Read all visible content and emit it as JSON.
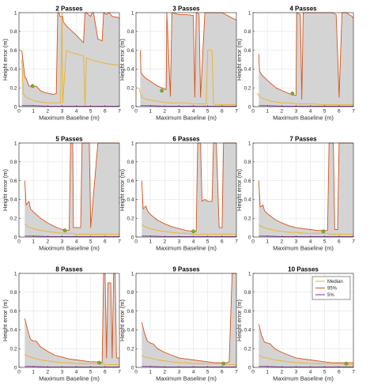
{
  "figure": {
    "xlabel": "Maximum Baseline (m)",
    "ylabel": "Height error (m)",
    "xticks": [
      0,
      1,
      2,
      3,
      4,
      5,
      6,
      7
    ],
    "yticks": [
      0,
      0.2,
      0.4,
      0.6,
      0.8,
      1
    ],
    "xlim": [
      0,
      7
    ],
    "ylim": [
      0,
      1
    ],
    "grid": true
  },
  "colors": {
    "median": "#EDB120",
    "p95": "#D95319",
    "p5": "#7E2F8E",
    "fill": "#d4d4d4",
    "marker": "#77AC30"
  },
  "legend": {
    "panel_index": 8,
    "placement": "top-right",
    "entries": [
      "Median",
      "95%",
      "5%"
    ]
  },
  "chart_data": [
    {
      "type": "line",
      "title": "2 Passes",
      "marker": {
        "x": 0.95,
        "y": 0.22
      },
      "series": [
        {
          "name": "Median",
          "x": [
            0.2,
            0.3,
            0.5,
            0.8,
            1.1,
            1.5,
            2.0,
            2.5,
            2.9,
            3.0,
            3.05,
            3.3,
            3.6,
            4.0,
            4.5,
            4.6,
            4.7,
            5.0,
            5.5,
            6.0,
            6.5,
            7.0
          ],
          "y": [
            0.5,
            0.14,
            0.1,
            0.08,
            0.06,
            0.05,
            0.04,
            0.04,
            0.04,
            1.0,
            0.04,
            0.6,
            0.58,
            0.56,
            0.54,
            0.0,
            0.52,
            0.5,
            0.48,
            0.46,
            0.45,
            0.44
          ]
        },
        {
          "name": "95%",
          "x": [
            0.2,
            0.4,
            0.5,
            0.7,
            1.0,
            1.2,
            1.5,
            1.8,
            2.1,
            2.4,
            2.6,
            2.7,
            2.8,
            2.85,
            3.05,
            3.1,
            3.3,
            3.5,
            4.0,
            4.5,
            4.6,
            4.7,
            5.0,
            5.1,
            5.2,
            5.5,
            5.8,
            5.9,
            6.1,
            6.3,
            6.5,
            6.9,
            7.0
          ],
          "y": [
            0.6,
            0.32,
            0.3,
            0.22,
            0.21,
            0.22,
            0.17,
            0.15,
            0.14,
            0.13,
            0.14,
            1.0,
            1.0,
            0.96,
            0.96,
            0.9,
            0.86,
            0.83,
            0.76,
            0.68,
            1.0,
            1.0,
            0.96,
            1.0,
            1.0,
            0.72,
            0.7,
            1.0,
            0.98,
            1.0,
            0.96,
            0.95,
            0.94
          ]
        },
        {
          "name": "5%",
          "x": [
            0.2,
            1.0,
            2.0,
            3.0,
            4.0,
            5.0,
            6.0,
            7.0
          ],
          "y": [
            0.01,
            0.01,
            0.005,
            0.005,
            0.005,
            0.005,
            0.005,
            0.005
          ]
        }
      ]
    },
    {
      "type": "line",
      "title": "3 Passes",
      "marker": {
        "x": 1.8,
        "y": 0.17
      },
      "series": [
        {
          "name": "Median",
          "x": [
            0.2,
            0.4,
            0.7,
            1.0,
            1.4,
            1.8,
            2.2,
            2.5,
            3.0,
            3.5,
            3.9,
            4.0,
            4.5,
            4.9,
            5.0,
            5.3,
            5.4,
            5.6,
            6.0,
            7.0
          ],
          "y": [
            0.2,
            0.1,
            0.08,
            0.07,
            0.06,
            0.05,
            0.04,
            0.04,
            0.04,
            0.04,
            0.03,
            0.03,
            0.03,
            0.03,
            0.6,
            0.6,
            0.03,
            0.02,
            0.02,
            0.02
          ]
        },
        {
          "name": "95%",
          "x": [
            0.3,
            0.35,
            0.5,
            0.7,
            1.0,
            1.2,
            1.5,
            1.8,
            2.0,
            2.1,
            2.15,
            2.4,
            2.5,
            3.0,
            3.5,
            4.0,
            4.1,
            4.2,
            4.3,
            4.4,
            4.5,
            4.8,
            4.9,
            5.0,
            5.5,
            6.0,
            6.5,
            7.0
          ],
          "y": [
            0.6,
            0.36,
            0.33,
            0.3,
            0.27,
            0.25,
            0.22,
            0.2,
            0.19,
            0.18,
            1.0,
            0.11,
            1.0,
            0.98,
            0.98,
            0.97,
            0.1,
            1.0,
            1.0,
            0.98,
            0.1,
            1.0,
            1.0,
            1.0,
            1.0,
            1.0,
            0.96,
            0.92
          ]
        },
        {
          "name": "5%",
          "x": [
            0.3,
            1.0,
            2.0,
            3.0,
            4.0,
            5.0,
            6.0,
            7.0
          ],
          "y": [
            0.01,
            0.01,
            0.005,
            0.005,
            0.005,
            0.005,
            0.005,
            0.005
          ]
        }
      ]
    },
    {
      "type": "line",
      "title": "4 Passes",
      "marker": {
        "x": 2.75,
        "y": 0.14
      },
      "series": [
        {
          "name": "Median",
          "x": [
            0.3,
            0.5,
            0.8,
            1.2,
            1.6,
            2.0,
            2.5,
            3.0,
            3.5,
            4.0,
            5.0,
            6.0,
            7.0
          ],
          "y": [
            0.14,
            0.1,
            0.08,
            0.06,
            0.05,
            0.04,
            0.04,
            0.03,
            0.03,
            0.03,
            0.02,
            0.02,
            0.02
          ]
        },
        {
          "name": "95%",
          "x": [
            0.4,
            0.45,
            0.6,
            0.8,
            1.0,
            1.3,
            1.6,
            1.9,
            2.2,
            2.5,
            2.7,
            2.9,
            3.0,
            3.05,
            3.3,
            3.4,
            3.5,
            4.0,
            4.5,
            5.0,
            5.5,
            5.8,
            6.0,
            6.2,
            6.5,
            6.9,
            7.0
          ],
          "y": [
            0.56,
            0.38,
            0.34,
            0.31,
            0.28,
            0.24,
            0.2,
            0.18,
            0.16,
            0.14,
            0.13,
            0.12,
            0.12,
            1.0,
            0.98,
            0.08,
            1.0,
            1.0,
            1.0,
            1.0,
            1.0,
            0.98,
            0.1,
            1.0,
            1.0,
            0.96,
            0.94
          ]
        },
        {
          "name": "5%",
          "x": [
            0.4,
            1.0,
            2.0,
            3.0,
            4.0,
            5.0,
            6.0,
            7.0
          ],
          "y": [
            0.01,
            0.01,
            0.005,
            0.005,
            0.005,
            0.005,
            0.005,
            0.005
          ]
        }
      ]
    },
    {
      "type": "line",
      "title": "5 Passes",
      "marker": {
        "x": 3.2,
        "y": 0.07
      },
      "series": [
        {
          "name": "Median",
          "x": [
            0.4,
            0.6,
            1.0,
            1.5,
            2.0,
            2.5,
            3.0,
            3.3,
            3.6,
            3.7,
            4.0,
            5.0,
            6.0,
            7.0
          ],
          "y": [
            0.14,
            0.11,
            0.09,
            0.07,
            0.06,
            0.05,
            0.04,
            0.04,
            0.04,
            0.04,
            0.03,
            0.03,
            0.03,
            0.03
          ]
        },
        {
          "name": "95%",
          "x": [
            0.4,
            0.5,
            0.7,
            0.8,
            1.0,
            1.5,
            2.0,
            2.5,
            3.0,
            3.3,
            3.5,
            3.6,
            3.75,
            3.8,
            4.3,
            4.4,
            4.5,
            4.9,
            5.0,
            5.5,
            6.0,
            6.5,
            7.0
          ],
          "y": [
            0.6,
            0.34,
            0.38,
            0.3,
            0.27,
            0.2,
            0.15,
            0.11,
            0.08,
            0.07,
            0.07,
            1.0,
            1.0,
            0.1,
            0.1,
            1.0,
            1.0,
            1.0,
            0.1,
            1.0,
            1.0,
            1.0,
            1.0
          ]
        },
        {
          "name": "5%",
          "x": [
            0.4,
            1.0,
            2.0,
            3.0,
            4.0,
            5.0,
            6.0,
            7.0
          ],
          "y": [
            0.01,
            0.01,
            0.005,
            0.005,
            0.005,
            0.005,
            0.005,
            0.005
          ]
        }
      ]
    },
    {
      "type": "line",
      "title": "6 Passes",
      "marker": {
        "x": 4.0,
        "y": 0.06
      },
      "series": [
        {
          "name": "Median",
          "x": [
            0.4,
            0.6,
            1.0,
            1.5,
            2.0,
            2.5,
            3.0,
            3.5,
            4.0,
            4.5,
            5.0,
            6.0,
            7.0
          ],
          "y": [
            0.13,
            0.11,
            0.09,
            0.07,
            0.06,
            0.05,
            0.04,
            0.04,
            0.03,
            0.03,
            0.03,
            0.03,
            0.03
          ]
        },
        {
          "name": "95%",
          "x": [
            0.4,
            0.5,
            0.7,
            0.8,
            1.0,
            1.5,
            2.0,
            2.5,
            3.0,
            3.5,
            4.0,
            4.2,
            4.3,
            4.5,
            4.6,
            4.8,
            5.0,
            5.3,
            5.4,
            5.6,
            5.8,
            6.0,
            6.1,
            6.2,
            6.5,
            7.0
          ],
          "y": [
            0.6,
            0.3,
            0.33,
            0.28,
            0.24,
            0.18,
            0.14,
            0.11,
            0.09,
            0.07,
            0.06,
            0.06,
            1.0,
            1.0,
            0.38,
            0.4,
            0.38,
            0.38,
            1.0,
            1.0,
            0.1,
            0.1,
            1.0,
            1.0,
            1.0,
            1.0
          ]
        },
        {
          "name": "5%",
          "x": [
            0.4,
            1.0,
            2.0,
            3.0,
            4.0,
            5.0,
            6.0,
            7.0
          ],
          "y": [
            0.01,
            0.01,
            0.005,
            0.005,
            0.005,
            0.005,
            0.005,
            0.005
          ]
        }
      ]
    },
    {
      "type": "line",
      "title": "7 Passes",
      "marker": {
        "x": 4.9,
        "y": 0.06
      },
      "series": [
        {
          "name": "Median",
          "x": [
            0.4,
            0.6,
            1.0,
            1.5,
            2.0,
            2.5,
            3.0,
            3.5,
            4.0,
            4.5,
            5.0,
            5.5,
            6.0,
            7.0
          ],
          "y": [
            0.13,
            0.11,
            0.09,
            0.07,
            0.06,
            0.05,
            0.05,
            0.04,
            0.04,
            0.04,
            0.04,
            0.03,
            0.03,
            0.03
          ]
        },
        {
          "name": "95%",
          "x": [
            0.4,
            0.5,
            0.7,
            0.8,
            1.0,
            1.5,
            2.0,
            2.5,
            3.0,
            3.5,
            4.0,
            4.5,
            5.0,
            5.2,
            5.3,
            5.6,
            5.7,
            5.9,
            6.0,
            6.5,
            7.0
          ],
          "y": [
            0.6,
            0.32,
            0.34,
            0.28,
            0.25,
            0.19,
            0.15,
            0.12,
            0.1,
            0.09,
            0.08,
            0.07,
            0.07,
            0.07,
            1.0,
            1.0,
            0.08,
            0.08,
            1.0,
            1.0,
            1.0
          ]
        },
        {
          "name": "5%",
          "x": [
            0.4,
            1.0,
            2.0,
            3.0,
            4.0,
            5.0,
            6.0,
            7.0
          ],
          "y": [
            0.01,
            0.01,
            0.005,
            0.005,
            0.005,
            0.005,
            0.005,
            0.005
          ]
        }
      ]
    },
    {
      "type": "line",
      "title": "8 Passes",
      "marker": {
        "x": 5.6,
        "y": 0.05
      },
      "series": [
        {
          "name": "Median",
          "x": [
            0.4,
            0.6,
            1.0,
            1.5,
            2.0,
            2.5,
            3.0,
            3.5,
            4.0,
            4.5,
            5.0,
            5.5,
            6.0,
            6.5,
            7.0
          ],
          "y": [
            0.14,
            0.12,
            0.1,
            0.08,
            0.07,
            0.06,
            0.05,
            0.05,
            0.04,
            0.04,
            0.04,
            0.04,
            0.03,
            0.03,
            0.03
          ]
        },
        {
          "name": "95%",
          "x": [
            0.4,
            0.6,
            0.8,
            1.0,
            1.2,
            1.5,
            2.0,
            2.5,
            3.0,
            3.5,
            4.0,
            4.5,
            5.0,
            5.5,
            5.8,
            5.9,
            6.0,
            6.1,
            6.2,
            6.4,
            6.5,
            6.6,
            6.7,
            6.8,
            7.0
          ],
          "y": [
            0.52,
            0.4,
            0.3,
            0.28,
            0.28,
            0.22,
            0.17,
            0.13,
            0.11,
            0.09,
            0.08,
            0.07,
            0.06,
            0.06,
            0.05,
            1.0,
            1.0,
            0.1,
            0.9,
            0.9,
            0.1,
            1.0,
            1.0,
            0.1,
            0.1
          ]
        },
        {
          "name": "5%",
          "x": [
            0.4,
            1.0,
            2.0,
            3.0,
            4.0,
            5.0,
            6.0,
            7.0
          ],
          "y": [
            0.01,
            0.01,
            0.005,
            0.005,
            0.005,
            0.005,
            0.005,
            0.005
          ]
        }
      ]
    },
    {
      "type": "line",
      "title": "9 Passes",
      "marker": {
        "x": 6.1,
        "y": 0.04
      },
      "series": [
        {
          "name": "Median",
          "x": [
            0.4,
            0.6,
            1.0,
            1.5,
            2.0,
            2.5,
            3.0,
            3.5,
            4.0,
            4.5,
            5.0,
            5.5,
            6.0,
            6.5,
            7.0
          ],
          "y": [
            0.13,
            0.11,
            0.1,
            0.08,
            0.07,
            0.06,
            0.05,
            0.05,
            0.04,
            0.04,
            0.04,
            0.04,
            0.04,
            0.03,
            0.03
          ]
        },
        {
          "name": "95%",
          "x": [
            0.4,
            0.6,
            0.8,
            1.0,
            1.2,
            1.5,
            2.0,
            2.5,
            3.0,
            3.5,
            4.0,
            4.5,
            5.0,
            5.5,
            6.0,
            6.3,
            6.5,
            6.7,
            6.75,
            7.0
          ],
          "y": [
            0.48,
            0.36,
            0.28,
            0.26,
            0.25,
            0.2,
            0.16,
            0.13,
            0.1,
            0.09,
            0.08,
            0.07,
            0.06,
            0.05,
            0.05,
            0.05,
            0.06,
            1.0,
            1.0,
            1.0
          ]
        },
        {
          "name": "5%",
          "x": [
            0.4,
            1.0,
            2.0,
            3.0,
            4.0,
            5.0,
            6.0,
            7.0
          ],
          "y": [
            0.01,
            0.01,
            0.005,
            0.005,
            0.005,
            0.005,
            0.005,
            0.005
          ]
        }
      ]
    },
    {
      "type": "line",
      "title": "10 Passes",
      "marker": {
        "x": 6.5,
        "y": 0.04
      },
      "series": [
        {
          "name": "Median",
          "x": [
            0.4,
            0.6,
            1.0,
            1.5,
            2.0,
            2.5,
            3.0,
            3.5,
            4.0,
            4.5,
            5.0,
            5.5,
            6.0,
            6.5,
            7.0
          ],
          "y": [
            0.13,
            0.11,
            0.1,
            0.08,
            0.07,
            0.06,
            0.05,
            0.05,
            0.04,
            0.04,
            0.04,
            0.04,
            0.04,
            0.03,
            0.03
          ]
        },
        {
          "name": "95%",
          "x": [
            0.4,
            0.6,
            0.8,
            1.0,
            1.2,
            1.5,
            2.0,
            2.5,
            3.0,
            3.5,
            4.0,
            4.5,
            5.0,
            5.5,
            6.0,
            6.5,
            7.0
          ],
          "y": [
            0.46,
            0.34,
            0.27,
            0.26,
            0.25,
            0.2,
            0.16,
            0.13,
            0.1,
            0.09,
            0.08,
            0.07,
            0.06,
            0.05,
            0.05,
            0.05,
            0.05
          ]
        },
        {
          "name": "5%",
          "x": [
            0.4,
            1.0,
            2.0,
            3.0,
            4.0,
            5.0,
            6.0,
            7.0
          ],
          "y": [
            0.01,
            0.01,
            0.005,
            0.005,
            0.005,
            0.005,
            0.005,
            0.005
          ]
        }
      ]
    }
  ]
}
